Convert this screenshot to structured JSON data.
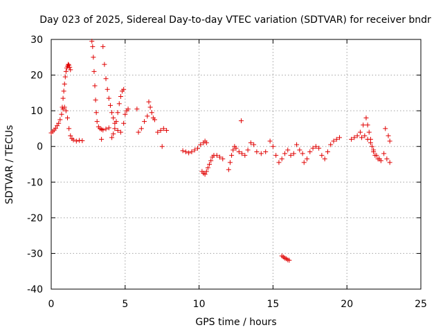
{
  "chart_data": {
    "type": "scatter",
    "title": "Day 023 of 2025, Sidereal Day-to-day VTEC variation (SDTVAR) for receiver bndr",
    "xlabel": "GPS time / hours",
    "ylabel": "SDTVAR / TECUs",
    "xlim": [
      0,
      25
    ],
    "ylim": [
      -40,
      30
    ],
    "xticks": [
      "0",
      "5",
      "10",
      "15",
      "20",
      "25"
    ],
    "yticks": [
      "30",
      "20",
      "10",
      "0",
      "-10",
      "-20",
      "-30",
      "-40"
    ],
    "grid": true,
    "marker": "plus",
    "color": "#e00000",
    "series": [
      {
        "name": "",
        "x": [
          0.0,
          0.1,
          0.2,
          0.3,
          0.4,
          0.5,
          0.6,
          0.7,
          0.75,
          0.8,
          0.85,
          0.9,
          0.95,
          1.0,
          1.05,
          1.1,
          1.15,
          1.2,
          1.25,
          1.3,
          0.8,
          0.9,
          1.0,
          1.1,
          1.2,
          1.3,
          1.4,
          1.5,
          1.7,
          1.9,
          2.1,
          2.75,
          2.8,
          2.85,
          2.9,
          2.95,
          3.0,
          3.05,
          3.1,
          3.2,
          3.3,
          3.4,
          3.5,
          3.7,
          3.9,
          3.4,
          3.5,
          3.6,
          3.7,
          3.8,
          3.9,
          4.0,
          4.1,
          4.2,
          4.3,
          4.5,
          4.7,
          4.9,
          5.0,
          5.1,
          5.2,
          4.1,
          4.2,
          4.3,
          4.4,
          4.5,
          4.6,
          4.7,
          4.8,
          4.9,
          5.8,
          5.9,
          6.1,
          6.3,
          6.5,
          6.6,
          6.7,
          6.8,
          6.9,
          7.0,
          7.2,
          7.4,
          7.6,
          7.8,
          7.5,
          8.9,
          9.1,
          9.3,
          9.5,
          9.7,
          9.9,
          10.1,
          10.3,
          10.4,
          10.5,
          10.2,
          10.3,
          10.4,
          10.5,
          10.6,
          10.7,
          10.8,
          10.9,
          11.0,
          11.2,
          11.4,
          11.6,
          12.0,
          12.1,
          12.2,
          12.3,
          12.4,
          12.5,
          12.7,
          12.9,
          13.1,
          13.3,
          13.5,
          13.7,
          13.9,
          14.2,
          14.5,
          12.85,
          14.8,
          15.0,
          15.2,
          15.4,
          15.6,
          15.8,
          16.0,
          16.2,
          16.4,
          16.6,
          16.8,
          17.0,
          15.6,
          15.7,
          15.8,
          15.9,
          16.0,
          16.1,
          17.1,
          17.3,
          17.5,
          17.7,
          17.9,
          18.1,
          18.3,
          18.5,
          18.7,
          18.9,
          19.1,
          19.3,
          19.5,
          20.3,
          20.5,
          20.7,
          20.9,
          21.1,
          21.3,
          21.4,
          21.5,
          21.6,
          21.7,
          21.8,
          21.9,
          22.1,
          22.3,
          22.5,
          22.7,
          22.9,
          21.0,
          21.2,
          21.4,
          21.6,
          21.8,
          22.0,
          22.2,
          22.6,
          22.8,
          22.9
        ],
        "y": [
          3.8,
          4.2,
          4.6,
          5.1,
          5.8,
          6.5,
          7.5,
          9.0,
          11.0,
          13.5,
          15.5,
          17.5,
          19.5,
          21.0,
          22.0,
          22.5,
          23.0,
          22.8,
          22.2,
          21.5,
          10.5,
          11.0,
          10.0,
          8.0,
          5.0,
          3.0,
          2.2,
          1.8,
          1.5,
          1.7,
          1.6,
          29.5,
          28.0,
          25.0,
          21.0,
          17.0,
          13.0,
          9.5,
          7.0,
          5.5,
          5.0,
          4.8,
          4.6,
          4.9,
          5.2,
          2.0,
          28.0,
          23.0,
          19.0,
          16.0,
          13.5,
          11.5,
          9.5,
          8.0,
          6.5,
          4.5,
          4.0,
          6.5,
          9.0,
          10.0,
          10.5,
          2.5,
          3.5,
          5.0,
          7.0,
          9.5,
          12.0,
          14.0,
          15.5,
          16.0,
          10.5,
          4.0,
          5.0,
          7.0,
          8.5,
          12.5,
          11.0,
          9.5,
          8.0,
          7.5,
          4.0,
          4.5,
          5.0,
          4.5,
          0.0,
          -1.2,
          -1.5,
          -1.8,
          -1.5,
          -1.0,
          -0.5,
          0.5,
          1.0,
          1.5,
          1.0,
          -7.0,
          -7.5,
          -7.8,
          -7.0,
          -6.0,
          -5.0,
          -4.0,
          -3.0,
          -2.5,
          -2.5,
          -3.0,
          -3.5,
          -6.5,
          -4.5,
          -2.5,
          -1.0,
          0.0,
          -0.5,
          -1.5,
          -2.0,
          -2.5,
          -1.0,
          1.0,
          0.5,
          -1.5,
          -2.0,
          -1.5,
          7.2,
          1.5,
          0.0,
          -2.5,
          -4.5,
          -3.5,
          -2.0,
          -1.0,
          -2.5,
          -2.0,
          0.5,
          -1.0,
          -2.0,
          -30.7,
          -31.0,
          -31.3,
          -31.5,
          -31.8,
          -31.9,
          -4.5,
          -3.5,
          -1.5,
          -0.5,
          0.0,
          -0.5,
          -2.5,
          -3.5,
          -1.5,
          0.5,
          1.5,
          2.0,
          2.5,
          2.0,
          2.5,
          3.0,
          4.0,
          6.0,
          8.0,
          6.0,
          4.0,
          2.0,
          0.0,
          -1.5,
          -2.5,
          -3.5,
          -4.0,
          -2.0,
          -3.5,
          -4.5,
          2.5,
          3.0,
          2.0,
          1.0,
          -1.0,
          -2.5,
          -3.5,
          5.0,
          3.0,
          1.5
        ]
      }
    ]
  }
}
